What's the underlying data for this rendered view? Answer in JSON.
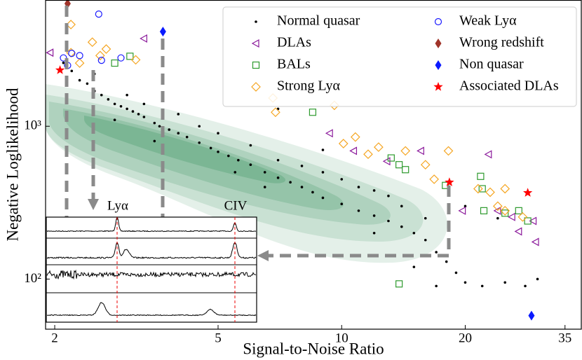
{
  "chart_data": {
    "type": "scatter",
    "xlabel": "Signal-to-Noise Ratio",
    "ylabel": "Negative Loglikelihood",
    "xscale": "log",
    "yscale": "log",
    "xlim": [
      1.9,
      38.5
    ],
    "ylim": [
      47,
      6700
    ],
    "xticks": [
      2,
      5,
      10,
      20,
      35
    ],
    "yticks": [
      {
        "value": 100,
        "label": "10²"
      },
      {
        "value": 1000,
        "label": "10³"
      }
    ],
    "legend": "upper right",
    "annotations": [
      "Lyα",
      "CIV"
    ],
    "series": [
      {
        "name": "Normal quasar",
        "color": "#000000",
        "marker": "dot",
        "x": [
          2.1,
          2.2,
          2.3,
          2.4,
          2.5,
          2.6,
          2.7,
          2.8,
          2.9,
          3.0,
          3.1,
          3.2,
          3.3,
          3.5,
          3.6,
          3.8,
          4.0,
          4.2,
          4.5,
          4.8,
          5.0,
          5.3,
          5.6,
          6.0,
          6.5,
          7.0,
          7.5,
          8.0,
          8.5,
          9.0,
          10,
          11,
          12,
          13,
          14,
          15,
          16,
          17,
          18,
          19,
          20,
          22,
          25,
          28,
          30,
          2.5,
          3.0,
          3.5,
          4.0,
          5.0,
          6,
          7,
          8,
          9,
          10,
          12,
          14,
          16,
          7,
          9,
          11,
          13,
          15,
          17,
          20,
          24,
          2.8,
          3.3,
          4.5,
          5.5,
          6.5,
          12
        ],
        "y": [
          2600,
          2300,
          2000,
          1900,
          1700,
          1600,
          1500,
          1400,
          1350,
          1300,
          1250,
          1200,
          1150,
          1050,
          1000,
          950,
          900,
          850,
          780,
          720,
          680,
          640,
          600,
          560,
          500,
          460,
          430,
          400,
          370,
          340,
          310,
          280,
          260,
          240,
          220,
          200,
          180,
          150,
          130,
          110,
          95,
          90,
          95,
          90,
          100,
          2200,
          1600,
          800,
          1200,
          900,
          750,
          600,
          550,
          500,
          450,
          380,
          300,
          250,
          1300,
          700,
          400,
          350,
          120,
          90,
          300,
          250,
          1100,
          1400,
          1000,
          500,
          400,
          200
        ]
      },
      {
        "name": "DLAs",
        "color": "#8b1a9b",
        "marker": "triangle-left",
        "x": [
          3.3,
          1.95,
          9.35,
          10.7,
          15.6,
          12.9,
          22.8,
          19.7,
          24,
          26,
          29.3,
          27,
          29.7
        ],
        "y": [
          3750,
          3030,
          900,
          690,
          690,
          590,
          655,
          280,
          280,
          255,
          240,
          205,
          175
        ]
      },
      {
        "name": "BALs",
        "color": "#2e9a2e",
        "marker": "square",
        "x": [
          3.05,
          2.8,
          8.5,
          13.8,
          14.3,
          13.2,
          17.9,
          21.8,
          22,
          22.2,
          25,
          27,
          28.4,
          13.8
        ],
        "y": [
          2870,
          2590,
          1235,
          560,
          520,
          620,
          410,
          470,
          390,
          280,
          270,
          280,
          240,
          93
        ]
      },
      {
        "name": "Strong Lyα",
        "color": "#f5a623",
        "marker": "diamond",
        "x": [
          2.19,
          2.47,
          2.67,
          2.3,
          3.15,
          2.19,
          2.58,
          6.8,
          6.9,
          9.6,
          10.8,
          10.1,
          12.3,
          11.6,
          14.3,
          18.2,
          16.0,
          21.5,
          23,
          25,
          24,
          25,
          27.6,
          16.8
        ],
        "y": [
          4630,
          3550,
          3200,
          2590,
          2720,
          3030,
          2900,
          1530,
          1235,
          1370,
          850,
          770,
          730,
          656,
          690,
          690,
          560,
          390,
          370,
          390,
          300,
          280,
          255,
          450
        ]
      },
      {
        "name": "Weak Lyα",
        "color": "#1a1aff",
        "marker": "circle",
        "x": [
          2.1,
          2.15,
          2.2,
          2.3,
          2.6,
          2.9,
          2.56
        ],
        "y": [
          2800,
          2500,
          3000,
          2900,
          2700,
          2800,
          5420
        ]
      },
      {
        "name": "Wrong redshift",
        "color": "#a0342a",
        "marker": "diamond-filled",
        "x": [
          2.15
        ],
        "y": [
          6350
        ]
      },
      {
        "name": "Non quasar",
        "color": "#0a1aff",
        "marker": "diamond-filled",
        "x": [
          3.67,
          29.0
        ],
        "y": [
          4160,
          57.7
        ]
      },
      {
        "name": "Associated DLAs",
        "color": "#ff0000",
        "marker": "star",
        "x": [
          2.06,
          18.3,
          28.4
        ],
        "y": [
          2330,
          430,
          367
        ]
      }
    ]
  }
}
